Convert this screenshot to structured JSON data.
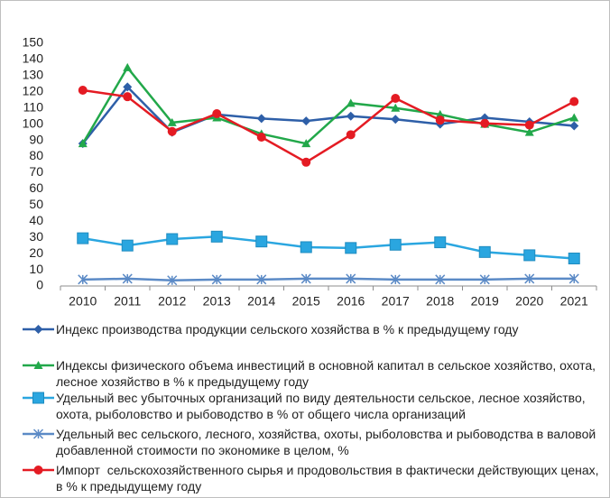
{
  "chart_data": {
    "type": "line",
    "categories": [
      "2010",
      "2011",
      "2012",
      "2013",
      "2014",
      "2015",
      "2016",
      "2017",
      "2018",
      "2019",
      "2020",
      "2021"
    ],
    "ylim": [
      0,
      150
    ],
    "yticks": [
      0,
      10,
      20,
      30,
      40,
      50,
      60,
      70,
      80,
      90,
      100,
      110,
      120,
      130,
      140,
      150
    ],
    "grid": false,
    "series": [
      {
        "name": "Индекс производства продукции сельского хозяйства в % к предыдущему году",
        "color": "#2e5fa8",
        "marker": "diamond",
        "values": [
          88,
          123,
          95,
          106,
          103.5,
          102,
          105,
          103,
          100,
          104,
          101.5,
          99
        ]
      },
      {
        "name": "Индексы физического объема инвестиций в основной капитал в сельское хозяйство, охота, лесное хозяйство в % к предыдущему году",
        "color": "#22a84a",
        "marker": "triangle",
        "values": [
          88,
          135,
          101,
          104,
          94,
          88,
          113,
          110,
          106,
          100,
          95,
          104
        ]
      },
      {
        "name": "Удельный вес убыточных организаций по виду деятельности сельское, лесное хозяйство, охота, рыболовство и рыбоводство в % от общего числа организаций",
        "color": "#2aa6e0",
        "marker": "square",
        "values": [
          29.5,
          25,
          29,
          30.5,
          27.5,
          24,
          23.5,
          25.5,
          27,
          21,
          19,
          17
        ]
      },
      {
        "name": "Удельный вес сельского, лесного, хозяйства, охоты, рыболовства и рыбоводства в валовой добавленной стоимости по экономике в целом, %",
        "color": "#5b8ac6",
        "marker": "asterisk",
        "values": [
          4,
          4.5,
          3.5,
          4,
          4,
          4.5,
          4.5,
          4,
          4,
          4,
          4.5,
          4.5
        ]
      },
      {
        "name": "Импорт  сельскохозяйственного сырья и продовольствия в фактически действующих ценах, в % к предыдущему году",
        "color": "#e41b23",
        "marker": "circle",
        "values": [
          121,
          117,
          95.5,
          106.5,
          92,
          76.5,
          93.5,
          116,
          102.5,
          100.5,
          99.5,
          114
        ]
      }
    ]
  }
}
